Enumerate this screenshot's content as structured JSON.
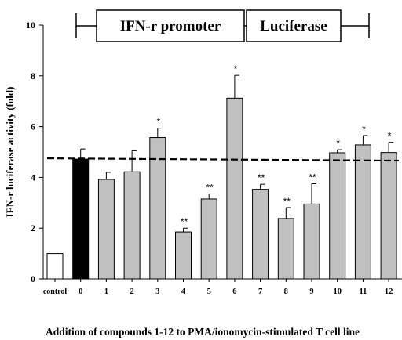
{
  "chart_data": {
    "type": "bar",
    "title": "",
    "xlabel": "Addition of compounds 1-12 to PMA/ionomycin-stimulated T cell line",
    "ylabel": "IFN-r luciferase activity (fold)",
    "ylim": [
      0,
      10
    ],
    "yticks": [
      "0",
      "2",
      "4",
      "6",
      "8",
      "10"
    ],
    "categories": [
      "control",
      "0",
      "1",
      "2",
      "3",
      "4",
      "5",
      "6",
      "7",
      "8",
      "9",
      "10",
      "11",
      "12"
    ],
    "values": [
      1.0,
      4.72,
      3.92,
      4.22,
      5.57,
      1.85,
      3.15,
      7.12,
      3.53,
      2.38,
      2.95,
      4.97,
      5.28,
      4.98
    ],
    "errors": [
      0,
      0.4,
      0.28,
      0.83,
      0.37,
      0.15,
      0.2,
      0.9,
      0.2,
      0.43,
      0.8,
      0.12,
      0.37,
      0.4
    ],
    "significance": [
      "",
      "",
      "",
      "",
      "*",
      "**",
      "**",
      "*",
      "**",
      "**",
      "**",
      "*",
      "*",
      "*"
    ],
    "bar_fill": [
      "#ffffff",
      "#000000",
      "#c0c0c0",
      "#c0c0c0",
      "#c0c0c0",
      "#c0c0c0",
      "#c0c0c0",
      "#c0c0c0",
      "#c0c0c0",
      "#c0c0c0",
      "#c0c0c0",
      "#c0c0c0",
      "#c0c0c0",
      "#c0c0c0"
    ],
    "reference_line": 4.72,
    "grid": false,
    "legend": "none"
  },
  "construct": {
    "promoter_label": "IFN-r promoter",
    "reporter_label": "Luciferase"
  }
}
